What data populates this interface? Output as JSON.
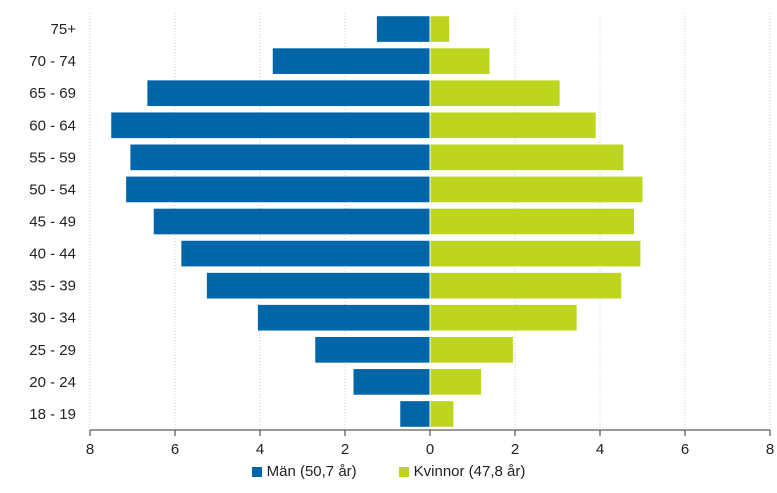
{
  "chart_data": {
    "type": "bar",
    "orientation": "horizontal-diverging",
    "categories": [
      "75+",
      "70 - 74",
      "65 - 69",
      "60 - 64",
      "55 - 59",
      "50 - 54",
      "45 - 49",
      "40 - 44",
      "35 - 39",
      "30 - 34",
      "25 - 29",
      "20 - 24",
      "18 - 19"
    ],
    "series": [
      {
        "name": "Män (50,7 år)",
        "color": "#0066a8",
        "side": "left",
        "values": [
          1.25,
          3.7,
          6.65,
          7.5,
          7.05,
          7.15,
          6.5,
          5.85,
          5.25,
          4.05,
          2.7,
          1.8,
          0.7
        ]
      },
      {
        "name": "Kvinnor (47,8 år)",
        "color": "#bed51f",
        "side": "right",
        "values": [
          0.45,
          1.4,
          3.05,
          3.9,
          4.55,
          5.0,
          4.8,
          4.95,
          4.5,
          3.45,
          1.95,
          1.2,
          0.55
        ]
      }
    ],
    "xaxis_ticks": [
      "8",
      "6",
      "4",
      "2",
      "0",
      "2",
      "4",
      "6",
      "8"
    ],
    "xlim": [
      -8,
      8
    ],
    "grid": "vertical",
    "legend_position": "bottom-center"
  }
}
